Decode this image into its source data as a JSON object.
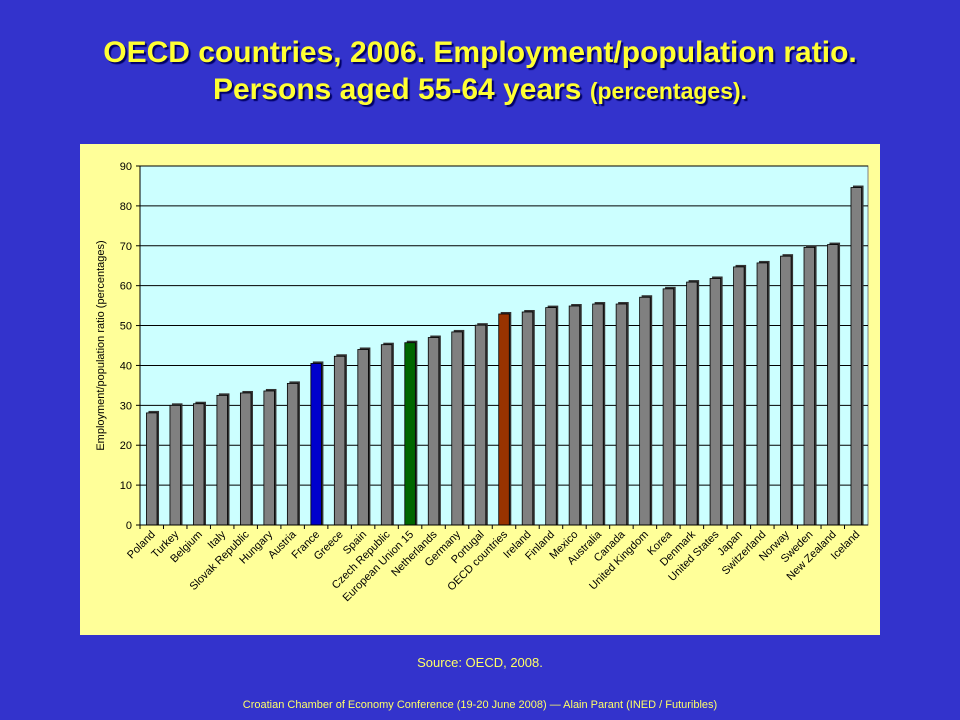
{
  "title": {
    "line1": "OECD countries, 2006. Employment/population ratio.",
    "line2_main": "Persons aged  55-64 years ",
    "line2_small": "(percentages)."
  },
  "source": "Source: OECD, 2008.",
  "footer": "Croatian Chamber of Economy Conference (19-20 June 2008) — Alain Parant (INED / Futuribles)",
  "colors": {
    "background": "#3333cc",
    "title": "#ffff33",
    "panel": "#ffff99",
    "plot_area": "#ccffff",
    "bar_default": "#808080",
    "bar_france": "#0000cc",
    "bar_eu15": "#006600",
    "bar_oecd": "#993300"
  },
  "chart_data": {
    "type": "bar",
    "ylabel": "Employment/population ratio (percentages)",
    "ylim": [
      0,
      90
    ],
    "yticks": [
      0,
      10,
      20,
      30,
      40,
      50,
      60,
      70,
      80,
      90
    ],
    "grid": true,
    "categories": [
      "Poland",
      "Turkey",
      "Belgium",
      "Italy",
      "Slovak Republic",
      "Hungary",
      "Austria",
      "France",
      "Greece",
      "Spain",
      "Czech Republic",
      "European Union 15",
      "Netherlands",
      "Germany",
      "Portugal",
      "OECD countries",
      "Ireland",
      "Finland",
      "Mexico",
      "Australia",
      "Canada",
      "United Kingdom",
      "Korea",
      "Denmark",
      "United States",
      "Japan",
      "Switzerland",
      "Norway",
      "Sweden",
      "New Zealand",
      "Iceland"
    ],
    "values": [
      28.1,
      30.0,
      30.4,
      32.5,
      33.1,
      33.6,
      35.5,
      40.5,
      42.3,
      44.0,
      45.2,
      45.7,
      47.0,
      48.4,
      50.1,
      52.9,
      53.4,
      54.5,
      54.9,
      55.4,
      55.4,
      57.1,
      59.2,
      60.9,
      61.8,
      64.7,
      65.7,
      67.4,
      69.6,
      70.3,
      84.6
    ],
    "bar_colors": [
      "#808080",
      "#808080",
      "#808080",
      "#808080",
      "#808080",
      "#808080",
      "#808080",
      "#0000cc",
      "#808080",
      "#808080",
      "#808080",
      "#006600",
      "#808080",
      "#808080",
      "#808080",
      "#993300",
      "#808080",
      "#808080",
      "#808080",
      "#808080",
      "#808080",
      "#808080",
      "#808080",
      "#808080",
      "#808080",
      "#808080",
      "#808080",
      "#808080",
      "#808080",
      "#808080",
      "#808080"
    ]
  }
}
